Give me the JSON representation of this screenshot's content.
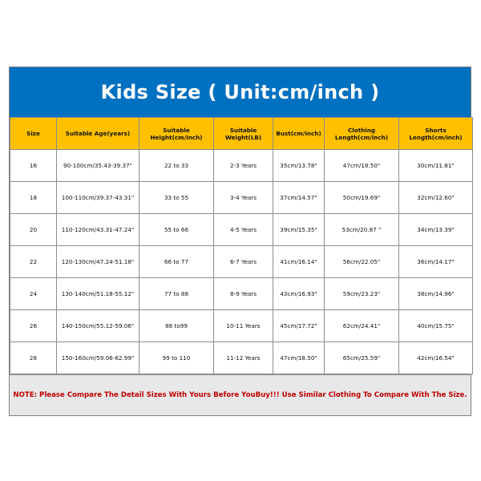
{
  "title": "Kids Size ( Unit:cm/inch )",
  "colors": {
    "title_bg": "#0070C0",
    "header_bg": "#FFC000",
    "note_text": "#C00000",
    "note_bg": "#E8E8E8"
  },
  "table": {
    "headers": [
      "Size",
      "Suitable Age(years)",
      "Suitable Height(cm/inch)",
      "Suitable Weight(LB)",
      "Bust(cm/inch)",
      "Clothing Length(cm/inch)",
      "Shorts Length(cm/inch)"
    ],
    "rows": [
      [
        "16",
        "90-100cm/35.43-39.37\"",
        "22 to 33",
        "2-3 Years",
        "35cm/13.78\"",
        "47cm/18.50\"",
        "30cm/11.81\""
      ],
      [
        "18",
        "100-110cm/39.37-43.31\"",
        "33 to 55",
        "3-4 Years",
        "37cm/14.57\"",
        "50cm/19.69\"",
        "32cm/12.60\""
      ],
      [
        "20",
        "110-120cm/43.31-47.24\"",
        "55 to 66",
        "4-5 Years",
        "39cm/15.35\"",
        "53cm/20.87 \"",
        "34cm/13.39\""
      ],
      [
        "22",
        "120-130cm/47.24-51.18\"",
        "66 to 77",
        "6-7 Years",
        "41cm/16.14\"",
        "56cm/22.05\"",
        "36cm/14.17\""
      ],
      [
        "24",
        "130-140cm/51.18-55.12\"",
        "77 to 88",
        "8-9 Years",
        "43cm/16.93\"",
        "59cm/23.23\"",
        "38cm/14.96\""
      ],
      [
        "26",
        "140-150cm/55.12-59.06\"",
        "88 to99",
        "10-11 Years",
        "45cm/17.72\"",
        "62cm/24.41\"",
        "40cm/15.75\""
      ],
      [
        "28",
        "150-160cm/59.06-62.99\"",
        "99 to 110",
        "11-12 Years",
        "47cm/18.50\"",
        "65cm/25.59\"",
        "42cm/16.54\""
      ]
    ]
  },
  "note": "NOTE: Please Compare The Detail Sizes With Yours Before YouBuy!!! Use Similar Clothing To Compare With The Size."
}
